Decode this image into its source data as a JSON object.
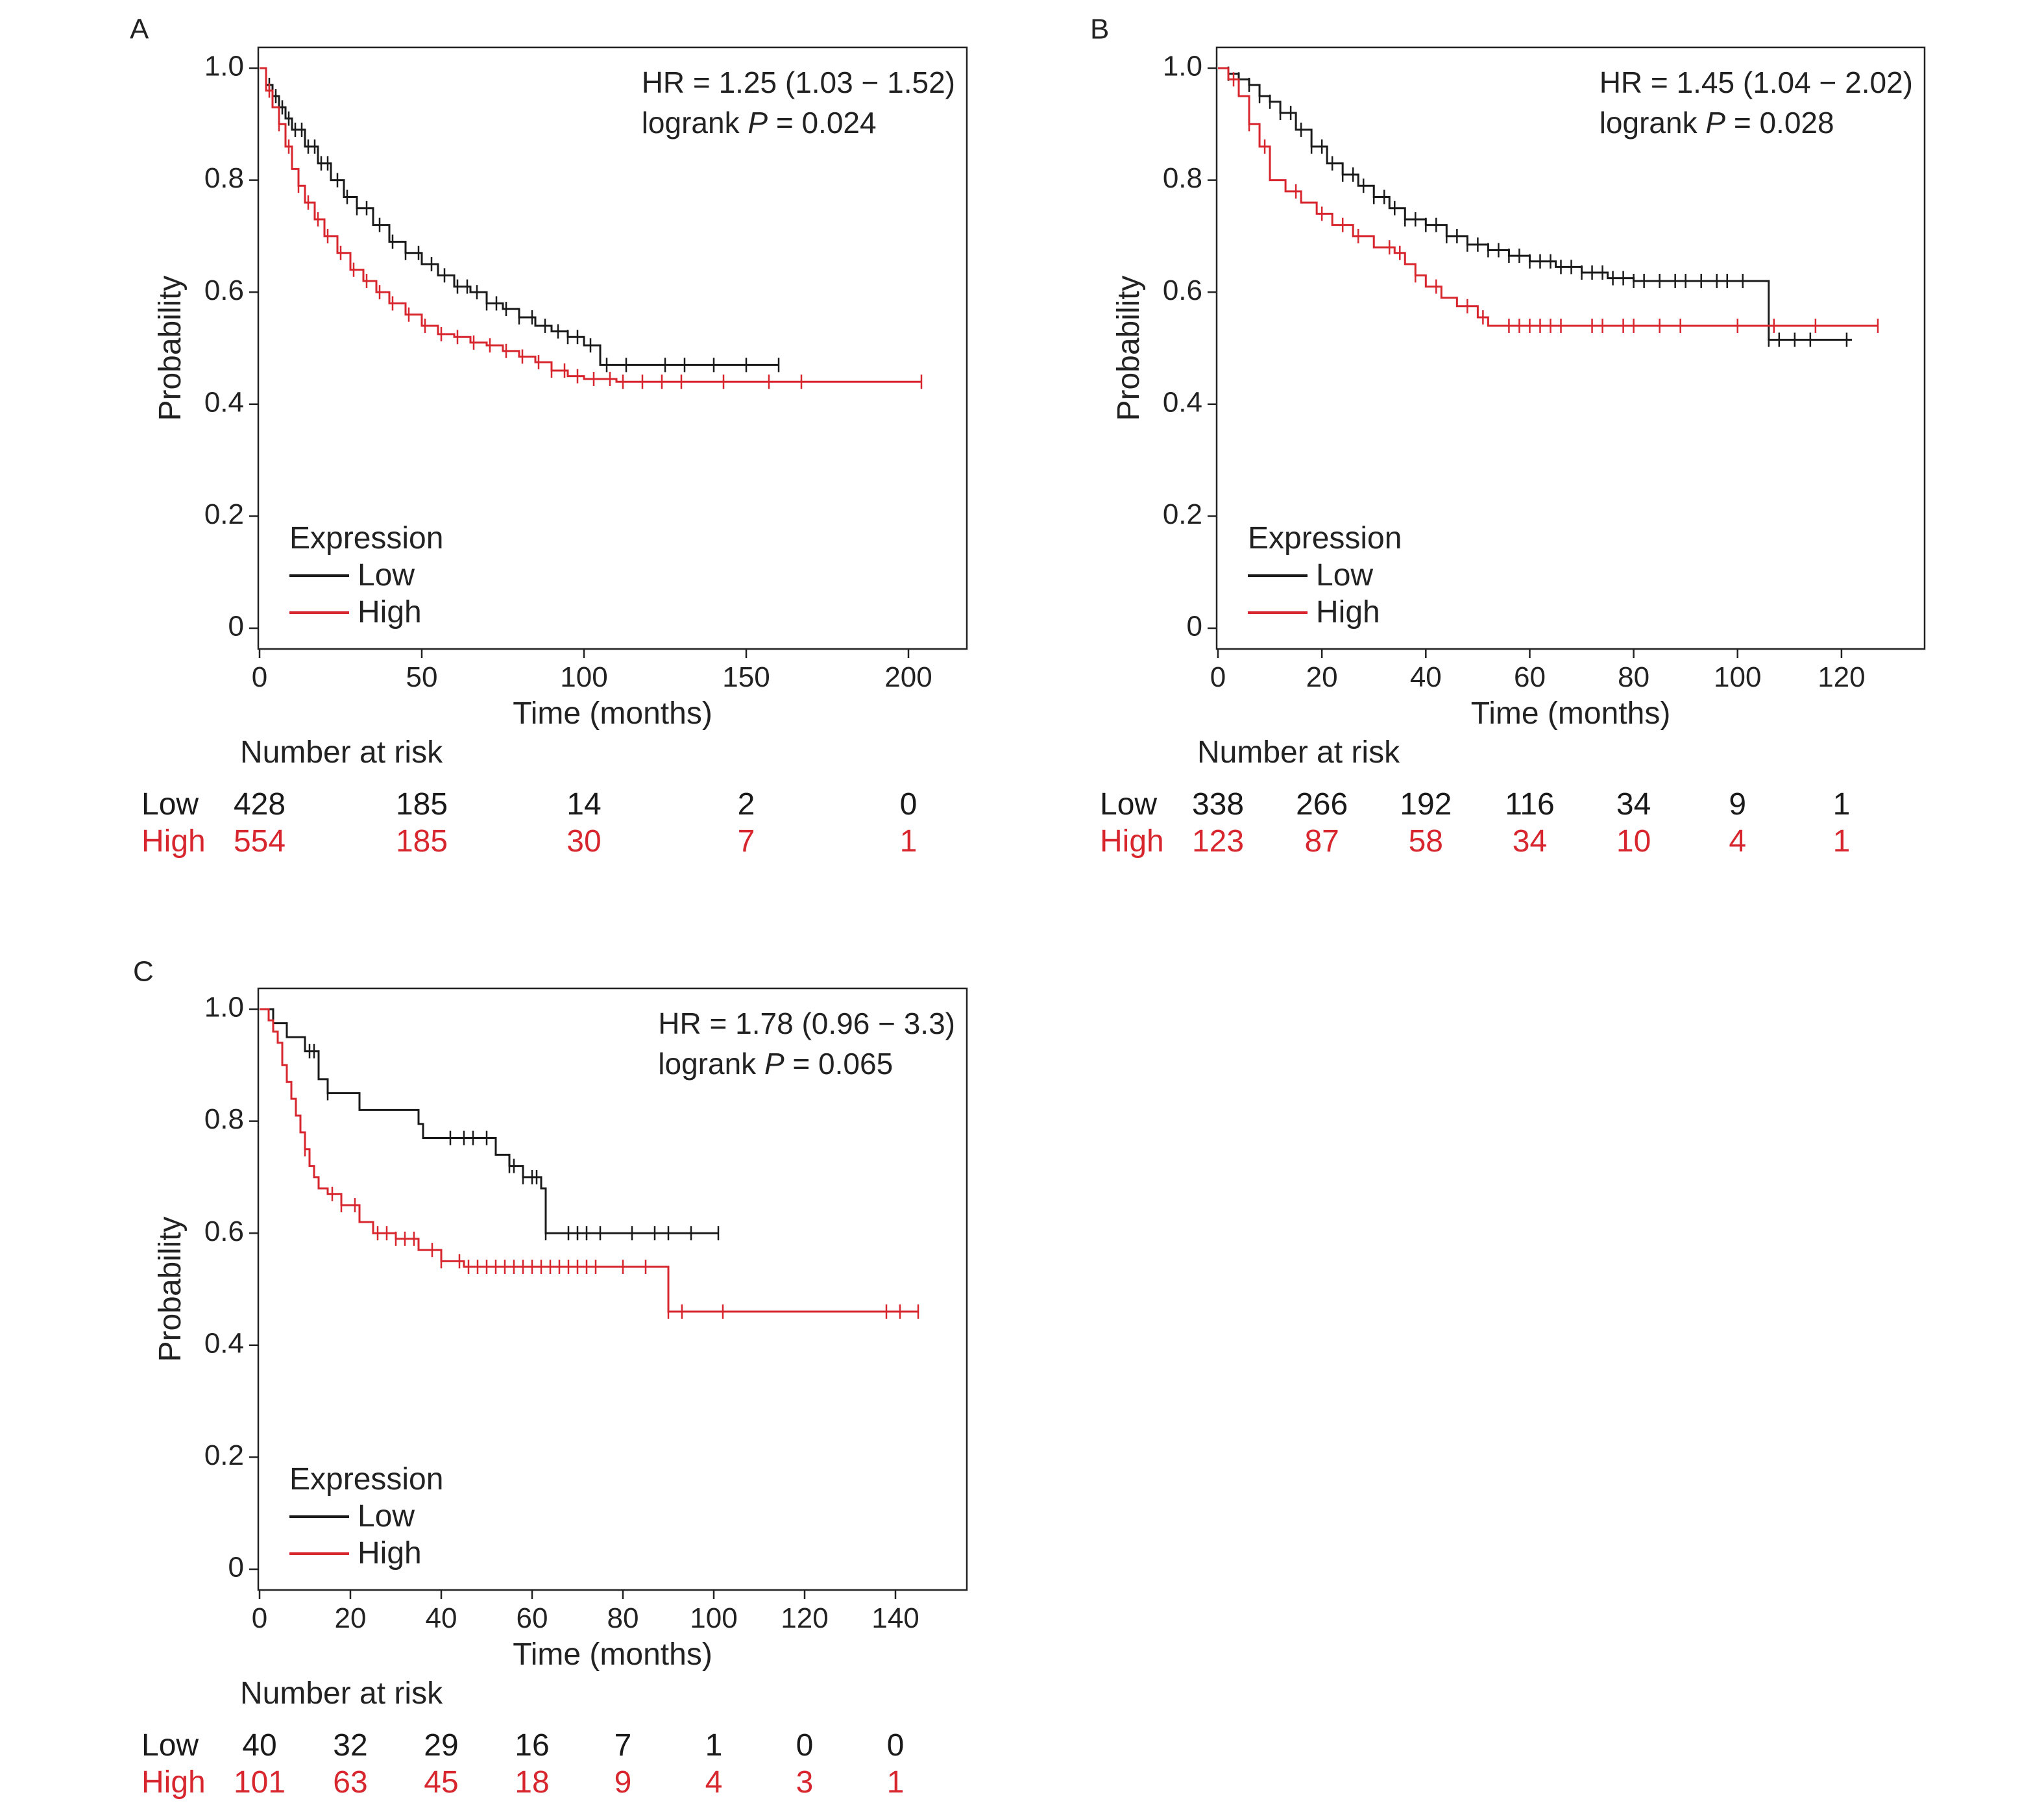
{
  "colors": {
    "low": "#1a1a1a",
    "high": "#d7262e",
    "axis": "#222222"
  },
  "chart_data": [
    {
      "panel": "A",
      "type": "line",
      "xlabel": "Time (months)",
      "ylabel": "Probability",
      "xlim": [
        0,
        210
      ],
      "ylim": [
        0,
        1.0
      ],
      "xticks": [
        0,
        50,
        100,
        150,
        200
      ],
      "xtick_labels": [
        "0",
        "50",
        "100",
        "150",
        "200"
      ],
      "yticks": [
        0,
        0.2,
        0.4,
        0.6,
        0.8,
        1.0
      ],
      "ytick_labels": [
        "0",
        "0.2",
        "0.4",
        "0.6",
        "0.8",
        "1.0"
      ],
      "stats": {
        "hr_text": "HR = 1.25 (1.03 − 1.52)",
        "logrank_prefix": "logrank ",
        "p_symbol": "P",
        "p_value": " = 0.024"
      },
      "legend_title": "Expression",
      "legend_placement": "bottom-left",
      "series": [
        {
          "name": "Low",
          "color": "#1a1a1a",
          "x": [
            0,
            2,
            4,
            6,
            8,
            10,
            14,
            18,
            22,
            26,
            30,
            35,
            40,
            45,
            50,
            55,
            60,
            65,
            70,
            75,
            80,
            85,
            90,
            95,
            100,
            105,
            110,
            120,
            130,
            140,
            150,
            160
          ],
          "y": [
            1.0,
            0.97,
            0.95,
            0.93,
            0.91,
            0.89,
            0.86,
            0.83,
            0.8,
            0.77,
            0.75,
            0.72,
            0.69,
            0.67,
            0.65,
            0.63,
            0.61,
            0.6,
            0.58,
            0.57,
            0.555,
            0.54,
            0.53,
            0.52,
            0.505,
            0.47,
            0.47,
            0.47,
            0.47,
            0.47,
            0.47,
            0.47
          ],
          "censor_x": [
            3,
            5,
            7,
            9,
            11,
            13,
            15,
            17,
            19,
            21,
            24,
            27,
            30,
            33,
            37,
            41,
            45,
            49,
            53,
            57,
            61,
            64,
            67,
            70,
            73,
            76,
            80,
            84,
            88,
            92,
            95,
            98,
            102,
            107,
            113,
            125,
            131,
            140,
            150,
            160
          ]
        },
        {
          "name": "High",
          "color": "#d7262e",
          "x": [
            0,
            2,
            4,
            6,
            8,
            10,
            12,
            14,
            17,
            20,
            24,
            28,
            32,
            36,
            40,
            45,
            50,
            55,
            60,
            65,
            70,
            75,
            80,
            85,
            90,
            95,
            100,
            110,
            120,
            150,
            180,
            204
          ],
          "y": [
            1.0,
            0.96,
            0.93,
            0.9,
            0.86,
            0.82,
            0.79,
            0.76,
            0.73,
            0.7,
            0.67,
            0.64,
            0.62,
            0.6,
            0.58,
            0.56,
            0.54,
            0.525,
            0.52,
            0.51,
            0.505,
            0.495,
            0.485,
            0.475,
            0.46,
            0.45,
            0.445,
            0.44,
            0.44,
            0.44,
            0.44,
            0.44
          ],
          "censor_x": [
            3,
            6,
            9,
            12,
            15,
            18,
            21,
            25,
            29,
            33,
            37,
            41,
            46,
            51,
            56,
            61,
            66,
            71,
            76,
            81,
            86,
            90,
            94,
            98,
            103,
            108,
            112,
            118,
            124,
            130,
            143,
            157,
            167,
            204
          ]
        }
      ],
      "number_at_risk": {
        "title": "Number at risk",
        "times": [
          0,
          50,
          100,
          150,
          200
        ],
        "rows": [
          {
            "label": "Low",
            "values": [
              "428",
              "185",
              "14",
              "2",
              "0"
            ]
          },
          {
            "label": "High",
            "values": [
              "554",
              "185",
              "30",
              "7",
              "1"
            ]
          }
        ]
      }
    },
    {
      "panel": "B",
      "type": "line",
      "xlabel": "Time (months)",
      "ylabel": "Probability",
      "xlim": [
        0,
        131
      ],
      "ylim": [
        0,
        1.0
      ],
      "xticks": [
        0,
        20,
        40,
        60,
        80,
        100,
        120
      ],
      "xtick_labels": [
        "0",
        "20",
        "40",
        "60",
        "80",
        "100",
        "120"
      ],
      "yticks": [
        0,
        0.2,
        0.4,
        0.6,
        0.8,
        1.0
      ],
      "ytick_labels": [
        "0",
        "0.2",
        "0.4",
        "0.6",
        "0.8",
        "1.0"
      ],
      "stats": {
        "hr_text": "HR = 1.45 (1.04 − 2.02)",
        "logrank_prefix": "logrank ",
        "p_symbol": "P",
        "p_value": " = 0.028"
      },
      "legend_title": "Expression",
      "legend_placement": "bottom-left",
      "series": [
        {
          "name": "Low",
          "color": "#1a1a1a",
          "x": [
            0,
            2,
            4,
            6,
            8,
            10,
            12,
            15,
            18,
            21,
            24,
            27,
            30,
            33,
            36,
            40,
            44,
            48,
            52,
            56,
            60,
            65,
            70,
            75,
            80,
            90,
            100,
            105,
            106,
            122
          ],
          "y": [
            1.0,
            0.99,
            0.98,
            0.97,
            0.95,
            0.94,
            0.92,
            0.89,
            0.86,
            0.83,
            0.81,
            0.79,
            0.77,
            0.75,
            0.73,
            0.72,
            0.7,
            0.685,
            0.675,
            0.665,
            0.655,
            0.645,
            0.635,
            0.625,
            0.62,
            0.62,
            0.62,
            0.62,
            0.515,
            0.515
          ],
          "censor_x": [
            2,
            4,
            6,
            8,
            10,
            12,
            14,
            16,
            18,
            20,
            22,
            24,
            26,
            28,
            30,
            32,
            34,
            36,
            38,
            40,
            42,
            44,
            46,
            48,
            50,
            52,
            54,
            56,
            58,
            60,
            62,
            64,
            66,
            68,
            70,
            72,
            74,
            76,
            78,
            80,
            82,
            85,
            88,
            90,
            93,
            96,
            98,
            101,
            106,
            108,
            111,
            114,
            121
          ]
        },
        {
          "name": "High",
          "color": "#d7262e",
          "x": [
            0,
            2,
            4,
            6,
            8,
            10,
            13,
            16,
            19,
            22,
            26,
            30,
            34,
            36,
            38,
            40,
            43,
            46,
            50,
            52,
            60,
            80,
            100,
            127
          ],
          "y": [
            1.0,
            0.98,
            0.95,
            0.9,
            0.86,
            0.8,
            0.78,
            0.76,
            0.74,
            0.72,
            0.7,
            0.68,
            0.67,
            0.65,
            0.63,
            0.61,
            0.59,
            0.575,
            0.555,
            0.54,
            0.54,
            0.54,
            0.54,
            0.54
          ],
          "censor_x": [
            3,
            6,
            9,
            15,
            20,
            24,
            27,
            33,
            35,
            38,
            42,
            48,
            51,
            56,
            58,
            60,
            62,
            64,
            66,
            72,
            74,
            78,
            80,
            85,
            89,
            100,
            107,
            115,
            127
          ]
        }
      ],
      "number_at_risk": {
        "title": "Number at risk",
        "times": [
          0,
          20,
          40,
          60,
          80,
          100,
          120
        ],
        "rows": [
          {
            "label": "Low",
            "values": [
              "338",
              "266",
              "192",
              "116",
              "34",
              "9",
              "1"
            ]
          },
          {
            "label": "High",
            "values": [
              "123",
              "87",
              "58",
              "34",
              "10",
              "4",
              "1"
            ]
          }
        ]
      }
    },
    {
      "panel": "C",
      "type": "line",
      "xlabel": "Time (months)",
      "ylabel": "Probability",
      "xlim": [
        0,
        150
      ],
      "ylim": [
        0,
        1.0
      ],
      "xticks": [
        0,
        20,
        40,
        60,
        80,
        100,
        120,
        140
      ],
      "xtick_labels": [
        "0",
        "20",
        "40",
        "60",
        "80",
        "100",
        "120",
        "140"
      ],
      "yticks": [
        0,
        0.2,
        0.4,
        0.6,
        0.8,
        1.0
      ],
      "ytick_labels": [
        "0",
        "0.2",
        "0.4",
        "0.6",
        "0.8",
        "1.0"
      ],
      "stats": {
        "hr_text": "HR = 1.78 (0.96 − 3.3)",
        "logrank_prefix": "logrank ",
        "p_symbol": "P",
        "p_value": " = 0.065"
      },
      "legend_title": "Expression",
      "legend_placement": "bottom-left",
      "series": [
        {
          "name": "Low",
          "color": "#1a1a1a",
          "x": [
            0,
            3,
            6,
            10,
            13,
            15,
            22,
            35,
            36,
            50,
            52,
            55,
            58,
            62,
            63,
            80,
            101
          ],
          "y": [
            1.0,
            0.975,
            0.95,
            0.925,
            0.875,
            0.85,
            0.82,
            0.795,
            0.77,
            0.77,
            0.74,
            0.72,
            0.7,
            0.68,
            0.6,
            0.6,
            0.6
          ],
          "censor_x": [
            11,
            12,
            15,
            42,
            45,
            47,
            50,
            55,
            56,
            58,
            60,
            61,
            63,
            68,
            70,
            72,
            75,
            82,
            87,
            90,
            95,
            101
          ]
        },
        {
          "name": "High",
          "color": "#d7262e",
          "x": [
            0,
            2,
            3,
            4,
            5,
            6,
            7,
            8,
            9,
            10,
            11,
            12,
            13,
            15,
            18,
            22,
            25,
            30,
            35,
            40,
            45,
            50,
            60,
            89,
            90,
            145
          ],
          "y": [
            1.0,
            0.98,
            0.96,
            0.94,
            0.9,
            0.87,
            0.84,
            0.81,
            0.78,
            0.75,
            0.72,
            0.7,
            0.68,
            0.67,
            0.65,
            0.62,
            0.6,
            0.59,
            0.57,
            0.55,
            0.54,
            0.54,
            0.54,
            0.54,
            0.46,
            0.46
          ],
          "censor_x": [
            10,
            16,
            18,
            21,
            26,
            28,
            30,
            32,
            34,
            38,
            40,
            44,
            46,
            48,
            50,
            52,
            54,
            56,
            58,
            60,
            62,
            64,
            66,
            68,
            70,
            72,
            74,
            80,
            85,
            90,
            93,
            102,
            138,
            141,
            145
          ]
        }
      ],
      "number_at_risk": {
        "title": "Number at risk",
        "times": [
          0,
          20,
          40,
          60,
          80,
          100,
          120,
          140
        ],
        "rows": [
          {
            "label": "Low",
            "values": [
              "40",
              "32",
              "29",
              "16",
              "7",
              "1",
              "0",
              "0"
            ]
          },
          {
            "label": "High",
            "values": [
              "101",
              "63",
              "45",
              "18",
              "9",
              "4",
              "3",
              "1"
            ]
          }
        ]
      }
    }
  ]
}
